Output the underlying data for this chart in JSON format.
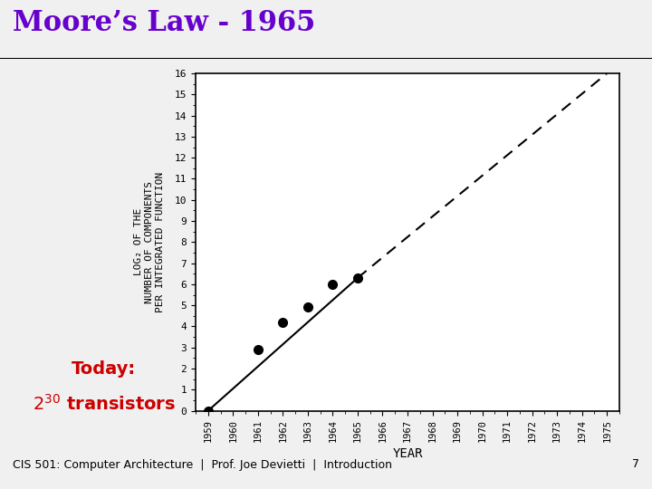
{
  "title": "Moore’s Law - 1965",
  "title_color": "#6600cc",
  "title_fontsize": 22,
  "bg_color": "#f0f0f0",
  "ylabel_lines": [
    "LOG₂ OF THE",
    "NUMBER OF COMPONENTS",
    "PER INTEGRATED FUNCTION"
  ],
  "xlabel": "YEAR",
  "xmin": 1958.5,
  "xmax": 1975.5,
  "ymin": 0,
  "ymax": 16,
  "yticks": [
    0,
    1,
    2,
    3,
    4,
    5,
    6,
    7,
    8,
    9,
    10,
    11,
    12,
    13,
    14,
    15,
    16
  ],
  "xticks": [
    1959,
    1960,
    1961,
    1962,
    1963,
    1964,
    1965,
    1966,
    1967,
    1968,
    1969,
    1970,
    1971,
    1972,
    1973,
    1974,
    1975
  ],
  "data_points_x": [
    1959,
    1961,
    1962,
    1963,
    1964,
    1965
  ],
  "data_points_y": [
    0,
    2.9,
    4.2,
    4.9,
    6.0,
    6.3
  ],
  "solid_line_x": [
    1959,
    1965
  ],
  "solid_line_y": [
    0,
    6.3
  ],
  "dashed_line_x": [
    1965,
    1975
  ],
  "dashed_line_y": [
    6.3,
    16.0
  ],
  "today_text": "Today:",
  "today_color": "#cc0000",
  "today_fontsize": 14,
  "footer_text": "CIS 501: Computer Architecture  |  Prof. Joe Devietti  |  Introduction",
  "footer_page": "7",
  "footer_fontsize": 9,
  "line_color": "#000000",
  "marker_color": "#000000",
  "chart_bg": "#ffffff"
}
